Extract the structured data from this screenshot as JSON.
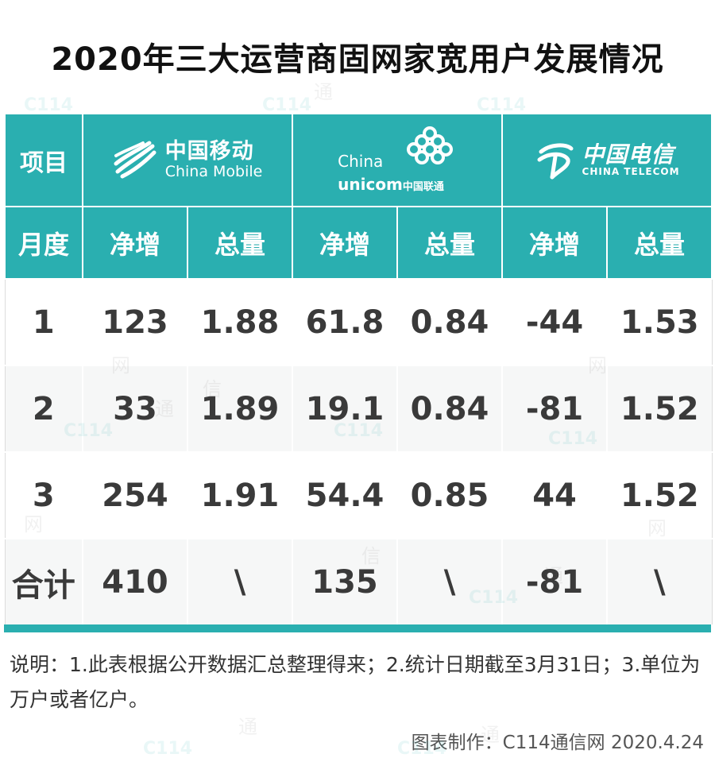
{
  "title": "2020年三大运营商固网家宽用户发展情况",
  "table": {
    "corner_label": "项目",
    "operators": [
      {
        "name_cn": "中国移动",
        "name_en": "China Mobile",
        "icon": "china-mobile-logo"
      },
      {
        "name_cn": "中国联通",
        "name_en_1": "China",
        "name_en_2": "unicom",
        "icon": "china-unicom-logo"
      },
      {
        "name_cn": "中国电信",
        "name_en": "CHINA TELECOM",
        "icon": "china-telecom-logo"
      }
    ],
    "month_label": "月度",
    "col_net": "净增",
    "col_total": "总量",
    "rows": [
      {
        "label": "1",
        "cells": [
          "123",
          "1.88",
          "61.8",
          "0.84",
          "-44",
          "1.53"
        ]
      },
      {
        "label": "2",
        "cells": [
          "33",
          "1.89",
          "19.1",
          "0.84",
          "-81",
          "1.52"
        ]
      },
      {
        "label": "3",
        "cells": [
          "254",
          "1.91",
          "54.4",
          "0.85",
          "44",
          "1.52"
        ]
      },
      {
        "label": "合计",
        "cells": [
          "410",
          "\\",
          "135",
          "\\",
          "-81",
          "\\"
        ]
      }
    ]
  },
  "note": "说明：1.此表根据公开数据汇总整理得来；2.统计日期截至3月31日；3.单位为万户或者亿户。",
  "credit": "图表制作：C114通信网  2020.4.24",
  "colors": {
    "header_bg": "#2aafb0",
    "alt_row_bg": "#f6f7f7"
  },
  "watermark": {
    "brand": "C114",
    "chars": [
      "通",
      "信",
      "网"
    ]
  }
}
